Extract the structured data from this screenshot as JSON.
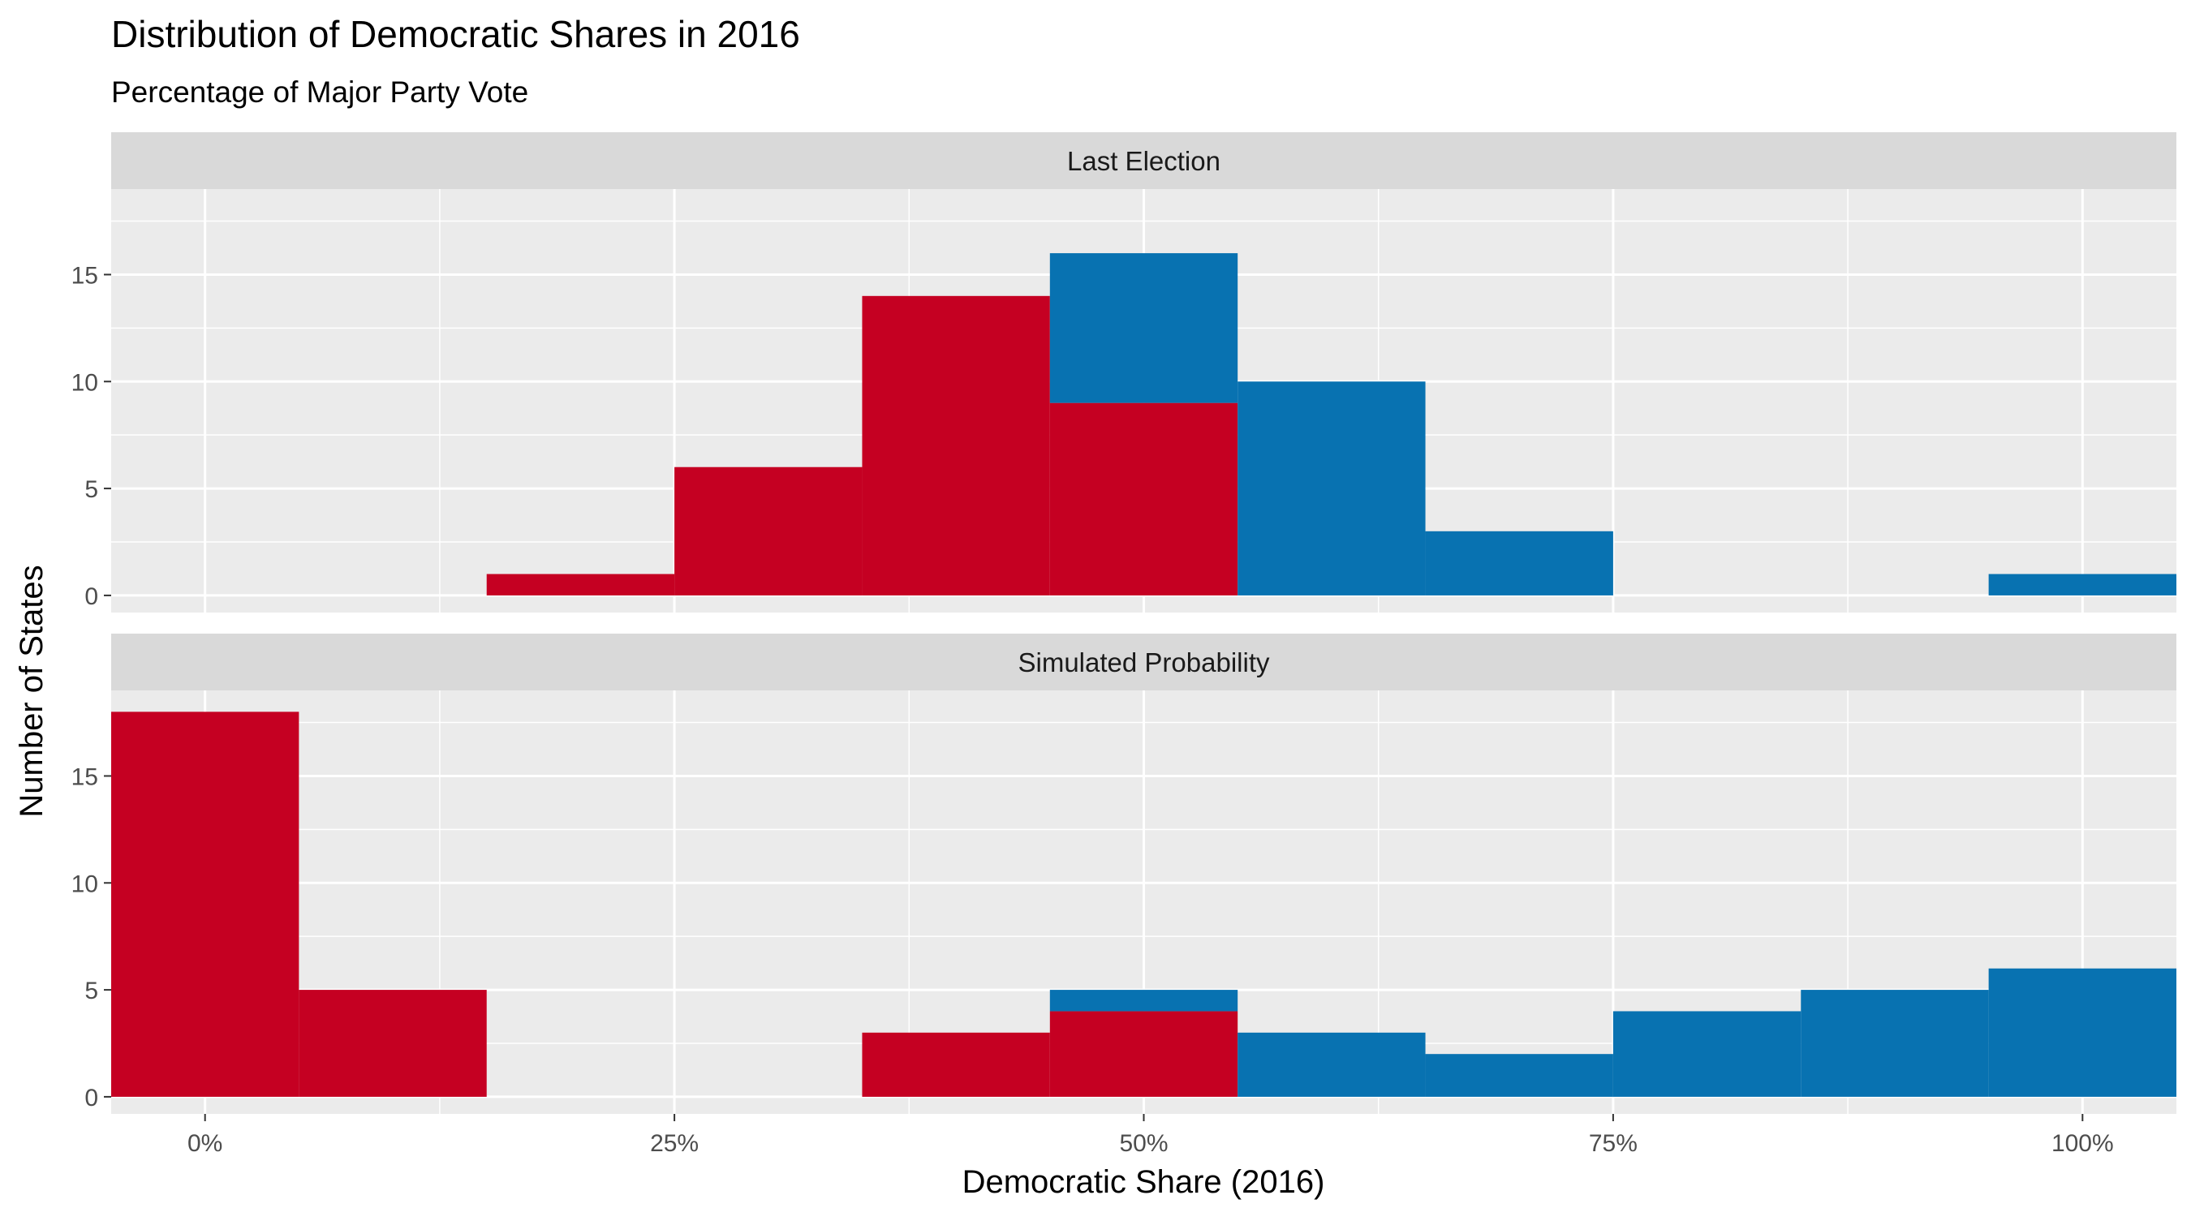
{
  "chart_data": {
    "type": "histogram",
    "title": "Distribution of Democratic Shares in 2016",
    "subtitle": "Percentage of Major Party Vote",
    "xlabel": "Democratic Share (2016)",
    "ylabel": "Number of States",
    "x_ticks": [
      "0%",
      "25%",
      "50%",
      "75%",
      "100%"
    ],
    "x_tick_values": [
      0,
      0.25,
      0.5,
      0.75,
      1.0
    ],
    "xlim": [
      -0.05,
      1.05
    ],
    "y_ticks": [
      0,
      5,
      10,
      15
    ],
    "ylim": [
      -0.8,
      19
    ],
    "bin_width": 0.1,
    "stacked": true,
    "grid": true,
    "colors": {
      "red": "#c50022",
      "blue": "#0872b1",
      "panel": "#ebebeb",
      "strip": "#d9d9d9",
      "grid": "#ffffff"
    },
    "panels": [
      {
        "strip_label": "Last Election",
        "bins": [
          {
            "x0": 0.15,
            "x1": 0.25,
            "red": 1,
            "blue": 0
          },
          {
            "x0": 0.25,
            "x1": 0.35,
            "red": 6,
            "blue": 0
          },
          {
            "x0": 0.35,
            "x1": 0.45,
            "red": 14,
            "blue": 0
          },
          {
            "x0": 0.45,
            "x1": 0.55,
            "red": 9,
            "blue": 7
          },
          {
            "x0": 0.55,
            "x1": 0.65,
            "red": 0,
            "blue": 10
          },
          {
            "x0": 0.65,
            "x1": 0.75,
            "red": 0,
            "blue": 3
          },
          {
            "x0": 0.95,
            "x1": 1.05,
            "red": 0,
            "blue": 1
          }
        ]
      },
      {
        "strip_label": "Simulated Probability",
        "bins": [
          {
            "x0": -0.05,
            "x1": 0.05,
            "red": 18,
            "blue": 0
          },
          {
            "x0": 0.05,
            "x1": 0.15,
            "red": 5,
            "blue": 0
          },
          {
            "x0": 0.35,
            "x1": 0.45,
            "red": 3,
            "blue": 0
          },
          {
            "x0": 0.45,
            "x1": 0.55,
            "red": 4,
            "blue": 1
          },
          {
            "x0": 0.55,
            "x1": 0.65,
            "red": 0,
            "blue": 3
          },
          {
            "x0": 0.65,
            "x1": 0.75,
            "red": 0,
            "blue": 2
          },
          {
            "x0": 0.75,
            "x1": 0.85,
            "red": 0,
            "blue": 4
          },
          {
            "x0": 0.85,
            "x1": 0.95,
            "red": 0,
            "blue": 5
          },
          {
            "x0": 0.95,
            "x1": 1.05,
            "red": 0,
            "blue": 6
          }
        ]
      }
    ]
  }
}
